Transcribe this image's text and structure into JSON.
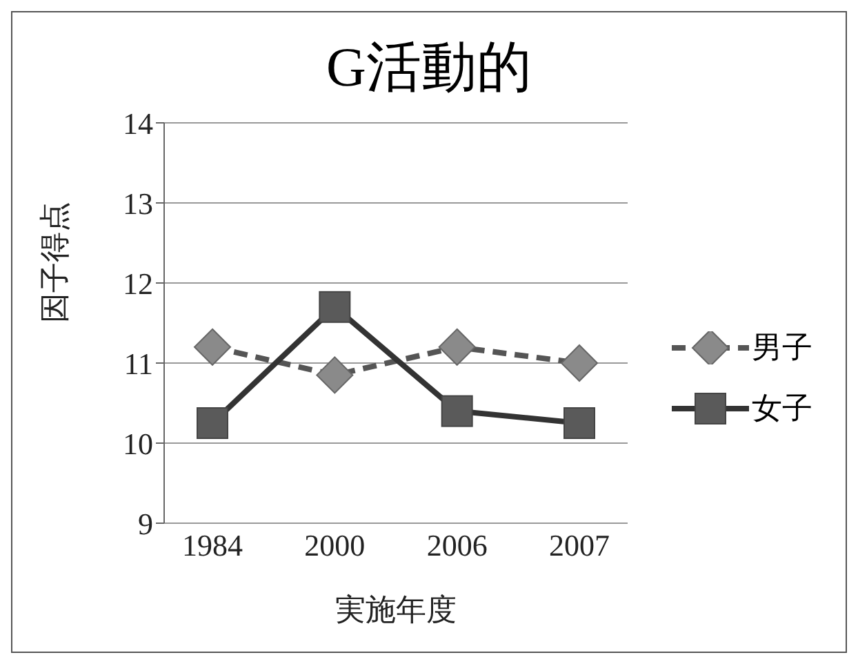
{
  "chart_data": {
    "type": "line",
    "title": "G活動的",
    "xlabel": "実施年度",
    "ylabel": "因子得点",
    "categories": [
      "1984",
      "2000",
      "2006",
      "2007"
    ],
    "series": [
      {
        "name": "男子",
        "color": "#8a8a8a",
        "values": [
          11.2,
          10.85,
          11.2,
          11.0
        ],
        "marker": "diamond",
        "line_style": "dashed"
      },
      {
        "name": "女子",
        "color": "#5a5a5a",
        "values": [
          10.25,
          11.7,
          10.4,
          10.25
        ],
        "marker": "square",
        "line_style": "solid"
      }
    ],
    "ylim": [
      9,
      14
    ],
    "yticks": [
      9,
      10,
      11,
      12,
      13,
      14
    ],
    "grid": "y",
    "legend": "right"
  }
}
